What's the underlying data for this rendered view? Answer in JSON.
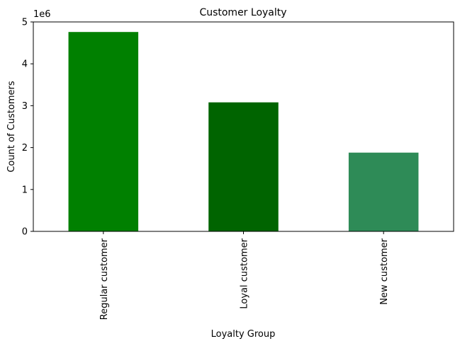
{
  "chart_data": {
    "type": "bar",
    "title": "Customer Loyalty",
    "xlabel": "Loyalty Group",
    "ylabel": "Count of Customers",
    "scale_label": "1e6",
    "categories": [
      "Regular customer",
      "Loyal customer",
      "New customer"
    ],
    "values": [
      4760000,
      3080000,
      1880000
    ],
    "colors": [
      "#008000",
      "#006400",
      "#2e8b57"
    ],
    "ylim": [
      0,
      5000000
    ],
    "yticks": [
      0,
      1000000,
      2000000,
      3000000,
      4000000,
      5000000
    ],
    "ytick_labels": [
      "0",
      "1",
      "2",
      "3",
      "4",
      "5"
    ],
    "grid": false,
    "legend": "none"
  }
}
